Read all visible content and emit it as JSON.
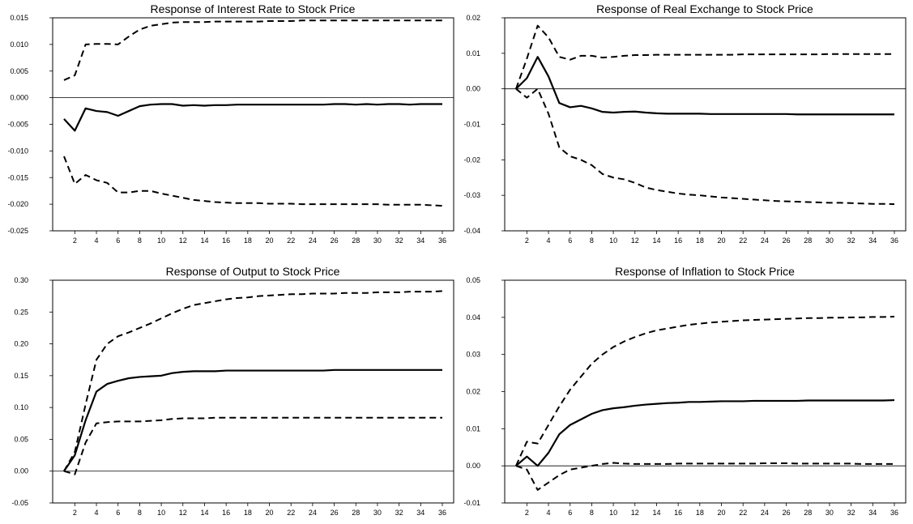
{
  "chart_data": [
    {
      "type": "line",
      "title": "Response of Interest Rate to Stock Price",
      "xlabel": "",
      "ylabel": "",
      "x_range": [
        1,
        36
      ],
      "x_ticks": [
        2,
        4,
        6,
        8,
        10,
        12,
        14,
        16,
        18,
        20,
        22,
        24,
        26,
        28,
        30,
        32,
        34,
        36
      ],
      "ylim": [
        -0.025,
        0.015
      ],
      "y_ticks": [
        -0.025,
        -0.02,
        -0.015,
        -0.01,
        -0.005,
        0.0,
        0.005,
        0.01,
        0.015
      ],
      "y_decimals": 3,
      "series": [
        {
          "role": "response",
          "style": "solid",
          "values": [
            -0.004,
            -0.0062,
            -0.002,
            -0.0025,
            -0.0027,
            -0.0034,
            -0.0025,
            -0.0016,
            -0.0013,
            -0.0012,
            -0.0012,
            -0.0015,
            -0.0014,
            -0.0015,
            -0.0014,
            -0.0014,
            -0.0013,
            -0.0013,
            -0.0013,
            -0.0013,
            -0.0013,
            -0.0013,
            -0.0013,
            -0.0013,
            -0.0013,
            -0.0012,
            -0.0012,
            -0.0013,
            -0.0012,
            -0.0013,
            -0.0012,
            -0.0012,
            -0.0013,
            -0.0012,
            -0.0012,
            -0.0012
          ]
        },
        {
          "role": "upper",
          "style": "dashed",
          "values": [
            0.0033,
            0.0042,
            0.01,
            0.0101,
            0.0101,
            0.01,
            0.0115,
            0.0128,
            0.0135,
            0.0138,
            0.0141,
            0.0142,
            0.0142,
            0.0142,
            0.0143,
            0.0143,
            0.0143,
            0.0143,
            0.0143,
            0.0144,
            0.0144,
            0.0144,
            0.0145,
            0.0145,
            0.0145,
            0.0145,
            0.0145,
            0.0145,
            0.0145,
            0.0145,
            0.0145,
            0.0145,
            0.0145,
            0.0145,
            0.0145,
            0.0145
          ]
        },
        {
          "role": "lower",
          "style": "dashed",
          "values": [
            -0.011,
            -0.0162,
            -0.0145,
            -0.0155,
            -0.016,
            -0.0178,
            -0.0178,
            -0.0175,
            -0.0175,
            -0.018,
            -0.0184,
            -0.0188,
            -0.0192,
            -0.0194,
            -0.0196,
            -0.0197,
            -0.0198,
            -0.0198,
            -0.0198,
            -0.0199,
            -0.0199,
            -0.0199,
            -0.02,
            -0.02,
            -0.02,
            -0.02,
            -0.02,
            -0.02,
            -0.02,
            -0.02,
            -0.0201,
            -0.0201,
            -0.0201,
            -0.0201,
            -0.0202,
            -0.0203
          ]
        }
      ]
    },
    {
      "type": "line",
      "title": "Response of Real Exchange to Stock Price",
      "xlabel": "",
      "ylabel": "",
      "x_range": [
        1,
        36
      ],
      "x_ticks": [
        2,
        4,
        6,
        8,
        10,
        12,
        14,
        16,
        18,
        20,
        22,
        24,
        26,
        28,
        30,
        32,
        34,
        36
      ],
      "ylim": [
        -0.04,
        0.02
      ],
      "y_ticks": [
        -0.04,
        -0.03,
        -0.02,
        -0.01,
        0.0,
        0.01,
        0.02
      ],
      "y_decimals": 2,
      "series": [
        {
          "role": "response",
          "style": "solid",
          "values": [
            0.0,
            0.003,
            0.009,
            0.0035,
            -0.004,
            -0.0052,
            -0.0048,
            -0.0055,
            -0.0065,
            -0.0067,
            -0.0065,
            -0.0064,
            -0.0067,
            -0.0069,
            -0.007,
            -0.007,
            -0.007,
            -0.007,
            -0.0071,
            -0.0071,
            -0.0071,
            -0.0071,
            -0.0071,
            -0.0071,
            -0.0071,
            -0.0071,
            -0.0072,
            -0.0072,
            -0.0072,
            -0.0072,
            -0.0072,
            -0.0072,
            -0.0072,
            -0.0072,
            -0.0072,
            -0.0072
          ]
        },
        {
          "role": "upper",
          "style": "dashed",
          "values": [
            0.0,
            0.0085,
            0.0178,
            0.0145,
            0.009,
            0.0082,
            0.0093,
            0.0093,
            0.0088,
            0.009,
            0.0093,
            0.0095,
            0.0095,
            0.0096,
            0.0096,
            0.0096,
            0.0096,
            0.0096,
            0.0096,
            0.0096,
            0.0096,
            0.0097,
            0.0097,
            0.0097,
            0.0097,
            0.0097,
            0.0097,
            0.0097,
            0.0097,
            0.0098,
            0.0098,
            0.0098,
            0.0098,
            0.0098,
            0.0098,
            0.0098
          ]
        },
        {
          "role": "lower",
          "style": "dashed",
          "values": [
            0.0,
            -0.0025,
            0.0,
            -0.007,
            -0.0165,
            -0.019,
            -0.02,
            -0.0215,
            -0.024,
            -0.025,
            -0.0255,
            -0.0265,
            -0.0278,
            -0.0285,
            -0.029,
            -0.0295,
            -0.0298,
            -0.03,
            -0.0303,
            -0.0306,
            -0.0308,
            -0.031,
            -0.0312,
            -0.0314,
            -0.0316,
            -0.0317,
            -0.0318,
            -0.0319,
            -0.032,
            -0.0321,
            -0.0321,
            -0.0322,
            -0.0323,
            -0.0324,
            -0.0324,
            -0.0325
          ]
        }
      ]
    },
    {
      "type": "line",
      "title": "Response of Output to Stock Price",
      "xlabel": "",
      "ylabel": "",
      "x_range": [
        1,
        36
      ],
      "x_ticks": [
        2,
        4,
        6,
        8,
        10,
        12,
        14,
        16,
        18,
        20,
        22,
        24,
        26,
        28,
        30,
        32,
        34,
        36
      ],
      "ylim": [
        -0.05,
        0.3
      ],
      "y_ticks": [
        -0.05,
        0.0,
        0.05,
        0.1,
        0.15,
        0.2,
        0.25,
        0.3
      ],
      "y_decimals": 2,
      "series": [
        {
          "role": "response",
          "style": "solid",
          "values": [
            0.0,
            0.025,
            0.08,
            0.125,
            0.137,
            0.142,
            0.146,
            0.148,
            0.149,
            0.15,
            0.154,
            0.156,
            0.157,
            0.157,
            0.157,
            0.158,
            0.158,
            0.158,
            0.158,
            0.158,
            0.158,
            0.158,
            0.158,
            0.158,
            0.158,
            0.159,
            0.159,
            0.159,
            0.159,
            0.159,
            0.159,
            0.159,
            0.159,
            0.159,
            0.159,
            0.159
          ]
        },
        {
          "role": "upper",
          "style": "dashed",
          "values": [
            0.0,
            0.03,
            0.105,
            0.175,
            0.2,
            0.212,
            0.218,
            0.225,
            0.232,
            0.24,
            0.248,
            0.255,
            0.261,
            0.264,
            0.267,
            0.27,
            0.272,
            0.273,
            0.275,
            0.276,
            0.277,
            0.278,
            0.278,
            0.279,
            0.279,
            0.279,
            0.28,
            0.28,
            0.28,
            0.281,
            0.281,
            0.281,
            0.282,
            0.282,
            0.282,
            0.283
          ]
        },
        {
          "role": "lower",
          "style": "dashed",
          "values": [
            0.0,
            -0.005,
            0.045,
            0.075,
            0.077,
            0.078,
            0.078,
            0.078,
            0.079,
            0.08,
            0.082,
            0.083,
            0.083,
            0.083,
            0.084,
            0.084,
            0.084,
            0.084,
            0.084,
            0.084,
            0.084,
            0.084,
            0.084,
            0.084,
            0.084,
            0.084,
            0.084,
            0.084,
            0.084,
            0.084,
            0.084,
            0.084,
            0.084,
            0.084,
            0.084,
            0.084
          ]
        }
      ]
    },
    {
      "type": "line",
      "title": "Response of Inflation to Stock Price",
      "xlabel": "",
      "ylabel": "",
      "x_range": [
        1,
        36
      ],
      "x_ticks": [
        2,
        4,
        6,
        8,
        10,
        12,
        14,
        16,
        18,
        20,
        22,
        24,
        26,
        28,
        30,
        32,
        34,
        36
      ],
      "ylim": [
        -0.01,
        0.05
      ],
      "y_ticks": [
        -0.01,
        0.0,
        0.01,
        0.02,
        0.03,
        0.04,
        0.05
      ],
      "y_decimals": 2,
      "series": [
        {
          "role": "response",
          "style": "solid",
          "values": [
            0.0,
            0.0025,
            0.0,
            0.0035,
            0.0085,
            0.011,
            0.0125,
            0.014,
            0.015,
            0.0155,
            0.0158,
            0.0162,
            0.0165,
            0.0167,
            0.0169,
            0.017,
            0.0172,
            0.0172,
            0.0173,
            0.0174,
            0.0174,
            0.0174,
            0.0175,
            0.0175,
            0.0175,
            0.0175,
            0.0175,
            0.0176,
            0.0176,
            0.0176,
            0.0176,
            0.0176,
            0.0176,
            0.0176,
            0.0176,
            0.0177
          ]
        },
        {
          "role": "upper",
          "style": "dashed",
          "values": [
            0.0,
            0.0065,
            0.006,
            0.011,
            0.016,
            0.0205,
            0.024,
            0.0275,
            0.03,
            0.032,
            0.0335,
            0.0347,
            0.0357,
            0.0365,
            0.037,
            0.0375,
            0.038,
            0.0383,
            0.0386,
            0.0388,
            0.039,
            0.0392,
            0.0393,
            0.0394,
            0.0395,
            0.0396,
            0.0397,
            0.0398,
            0.0398,
            0.0399,
            0.0399,
            0.04,
            0.04,
            0.0401,
            0.0401,
            0.0402
          ]
        },
        {
          "role": "lower",
          "style": "dashed",
          "values": [
            0.0,
            -0.001,
            -0.0065,
            -0.0045,
            -0.0025,
            -0.001,
            -0.0005,
            0.0,
            0.0005,
            0.0008,
            0.0006,
            0.0005,
            0.0005,
            0.0005,
            0.0005,
            0.0006,
            0.0006,
            0.0006,
            0.0006,
            0.0006,
            0.0006,
            0.0006,
            0.0006,
            0.0007,
            0.0007,
            0.0007,
            0.0006,
            0.0006,
            0.0006,
            0.0006,
            0.0006,
            0.0006,
            0.0005,
            0.0005,
            0.0005,
            0.0005
          ]
        }
      ]
    }
  ]
}
